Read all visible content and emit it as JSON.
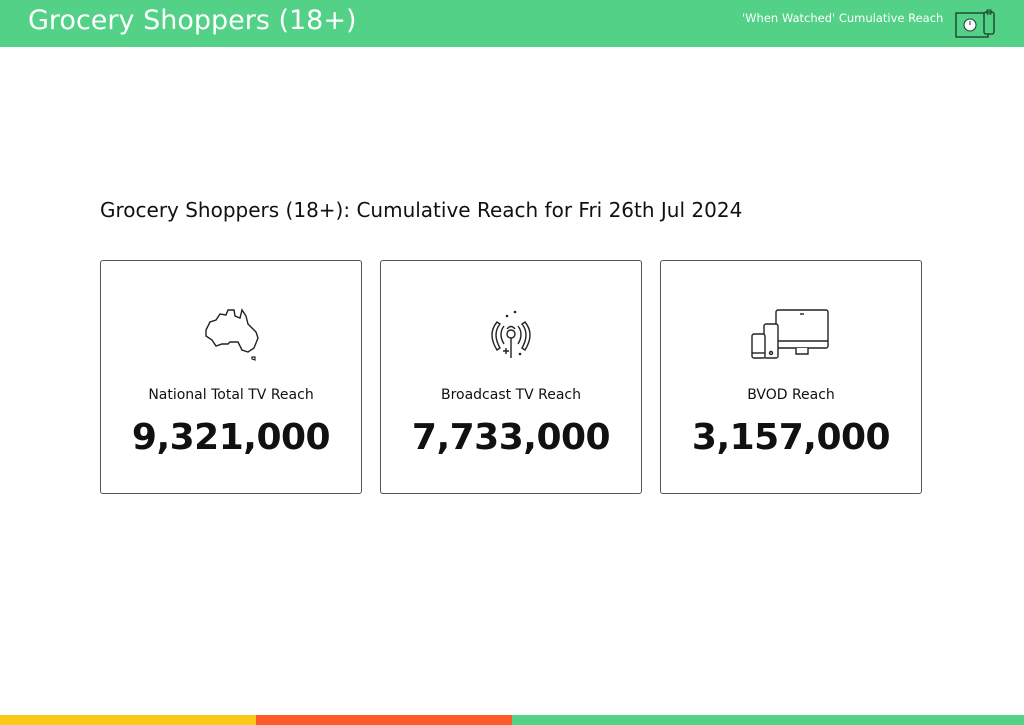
{
  "header": {
    "title": "Grocery Shoppers (18+)",
    "subtitle": "'When Watched' Cumulative Reach",
    "icon": "tv-clock-phone-icon",
    "color": "#52d187"
  },
  "main": {
    "heading": "Grocery Shoppers (18+): Cumulative Reach for Fri 26th Jul 2024",
    "cards": [
      {
        "icon": "australia-map-icon",
        "label": "National Total TV Reach",
        "value": "9,321,000"
      },
      {
        "icon": "broadcast-antenna-icon",
        "label": "Broadcast TV Reach",
        "value": "7,733,000"
      },
      {
        "icon": "devices-icon",
        "label": "BVOD Reach",
        "value": "3,157,000"
      }
    ]
  },
  "footer": {
    "colors": [
      "#fbc918",
      "#fd5a29",
      "#52d187"
    ]
  }
}
